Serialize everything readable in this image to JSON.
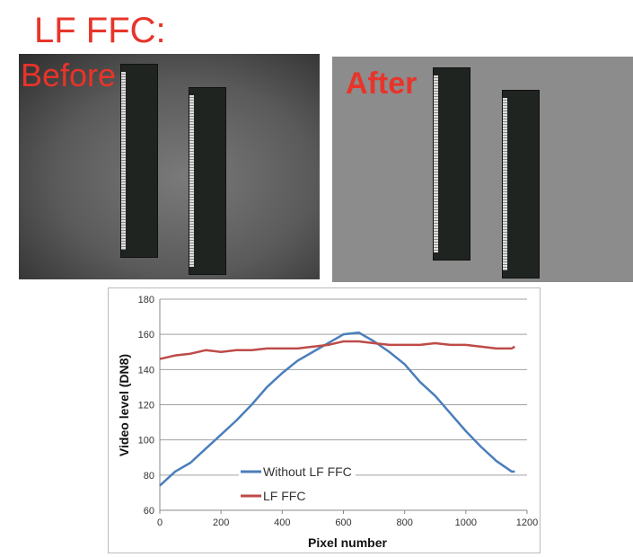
{
  "slide": {
    "title": "LF FFC:",
    "before_label": "Before",
    "after_label": "After"
  },
  "colors": {
    "label_red": "#e8342a",
    "without_ffc": "#4a7ebb",
    "with_ffc": "#be4b48"
  },
  "chart_data": {
    "type": "line",
    "title": "",
    "xlabel": "Pixel number",
    "ylabel": "Video level (DN8)",
    "xlim": [
      0,
      1200
    ],
    "ylim": [
      60,
      180
    ],
    "xticks": [
      0,
      200,
      400,
      600,
      800,
      1000,
      1200
    ],
    "yticks": [
      60,
      80,
      100,
      120,
      140,
      160,
      180
    ],
    "grid": "horizontal",
    "legend": "bottom-left inside",
    "series": [
      {
        "name": "Without LF FFC",
        "color": "#4a7ebb",
        "x": [
          0,
          50,
          100,
          150,
          200,
          250,
          300,
          350,
          400,
          450,
          500,
          550,
          600,
          650,
          700,
          750,
          800,
          850,
          900,
          950,
          1000,
          1050,
          1100,
          1150,
          1160
        ],
        "y": [
          74,
          82,
          87,
          95,
          103,
          111,
          120,
          130,
          138,
          145,
          150,
          155,
          160,
          161,
          156,
          150,
          143,
          133,
          125,
          115,
          105,
          96,
          88,
          82,
          82
        ]
      },
      {
        "name": "LF FFC",
        "color": "#be4b48",
        "x": [
          0,
          50,
          100,
          150,
          200,
          250,
          300,
          350,
          400,
          450,
          500,
          550,
          600,
          650,
          700,
          750,
          800,
          850,
          900,
          950,
          1000,
          1050,
          1100,
          1150,
          1160
        ],
        "y": [
          146,
          148,
          149,
          151,
          150,
          151,
          151,
          152,
          152,
          152,
          153,
          154,
          156,
          156,
          155,
          154,
          154,
          154,
          155,
          154,
          154,
          153,
          152,
          152,
          153
        ]
      }
    ]
  }
}
